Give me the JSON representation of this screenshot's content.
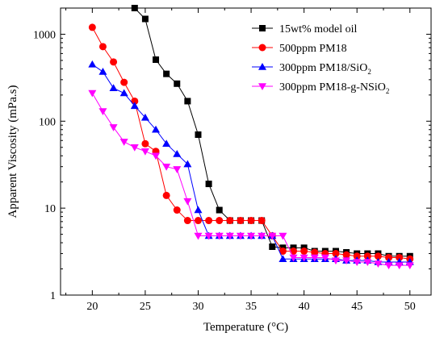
{
  "chart_data": {
    "type": "line",
    "title": "",
    "xlabel": "Temperature (°C)",
    "ylabel": "Apparent Viscosity (mPa.s)",
    "xlim": [
      17,
      52
    ],
    "ylim": [
      1,
      2000
    ],
    "yscale": "log",
    "xticks": [
      20,
      25,
      30,
      35,
      40,
      45,
      50
    ],
    "yticks": [
      1,
      10,
      100,
      1000
    ],
    "xtick_labels": [
      "20",
      "25",
      "30",
      "35",
      "40",
      "45",
      "50"
    ],
    "ytick_labels": [
      "1",
      "10",
      "100",
      "1000"
    ],
    "grid": false,
    "legend_position": "top-right",
    "series": [
      {
        "name": "15wt% model oil",
        "legend_main": "15wt% model oil",
        "legend_sub": "",
        "legend_tail": "",
        "color": "#000000",
        "marker": "square",
        "x": [
          24,
          25,
          26,
          27,
          28,
          29,
          30,
          31,
          32,
          33,
          34,
          35,
          36,
          37,
          38,
          39,
          40,
          41,
          42,
          43,
          44,
          45,
          46,
          47,
          48,
          49,
          50
        ],
        "y": [
          2000,
          1500,
          510,
          350,
          270,
          170,
          70,
          19,
          9.5,
          7.2,
          7.2,
          7.2,
          7.2,
          3.6,
          3.5,
          3.5,
          3.5,
          3.2,
          3.2,
          3.2,
          3.1,
          3.0,
          3.0,
          3.0,
          2.8,
          2.8,
          2.8
        ]
      },
      {
        "name": "500ppm PM18",
        "legend_main": "500ppm PM18",
        "legend_sub": "",
        "legend_tail": "",
        "color": "#ff0000",
        "marker": "circle",
        "x": [
          20,
          21,
          22,
          23,
          24,
          25,
          26,
          27,
          28,
          29,
          30,
          31,
          32,
          33,
          34,
          35,
          36,
          37,
          38,
          39,
          40,
          41,
          42,
          43,
          44,
          45,
          46,
          47,
          48,
          49,
          50
        ],
        "y": [
          1200,
          720,
          480,
          280,
          170,
          55,
          45,
          14,
          9.5,
          7.2,
          7.2,
          7.2,
          7.2,
          7.2,
          7.2,
          7.2,
          7.2,
          4.8,
          3.2,
          3.2,
          3.2,
          3.1,
          3.0,
          3.0,
          2.9,
          2.8,
          2.8,
          2.8,
          2.7,
          2.7,
          2.6
        ]
      },
      {
        "name": "300ppm PM18/SiO2",
        "legend_main": "300ppm PM18/SiO",
        "legend_sub": "2",
        "legend_tail": "",
        "color": "#0000ff",
        "marker": "triangle-up",
        "x": [
          20,
          21,
          22,
          23,
          24,
          25,
          26,
          27,
          28,
          29,
          30,
          31,
          32,
          33,
          34,
          35,
          36,
          37,
          38,
          39,
          40,
          41,
          42,
          43,
          44,
          45,
          46,
          47,
          48,
          49,
          50
        ],
        "y": [
          450,
          370,
          240,
          210,
          150,
          110,
          80,
          55,
          42,
          32,
          9.5,
          4.8,
          4.8,
          4.8,
          4.8,
          4.8,
          4.8,
          4.8,
          2.6,
          2.6,
          2.6,
          2.6,
          2.6,
          2.6,
          2.5,
          2.5,
          2.5,
          2.4,
          2.4,
          2.4,
          2.4
        ]
      },
      {
        "name": "300ppm PM18-g-NSiO2",
        "legend_main": "300ppm PM18-g-NSiO",
        "legend_sub": "2",
        "legend_tail": "",
        "color": "#ff00ff",
        "marker": "triangle-down",
        "x": [
          20,
          21,
          22,
          23,
          24,
          25,
          26,
          27,
          28,
          29,
          30,
          31,
          32,
          33,
          34,
          35,
          36,
          37,
          38,
          39,
          40,
          41,
          42,
          43,
          44,
          45,
          46,
          47,
          48,
          49,
          50
        ],
        "y": [
          210,
          130,
          85,
          58,
          50,
          45,
          40,
          30,
          28,
          12,
          4.8,
          4.8,
          4.8,
          4.8,
          4.8,
          4.8,
          4.8,
          4.8,
          4.8,
          2.7,
          2.7,
          2.7,
          2.7,
          2.5,
          2.5,
          2.4,
          2.4,
          2.3,
          2.2,
          2.2,
          2.2
        ]
      }
    ]
  }
}
